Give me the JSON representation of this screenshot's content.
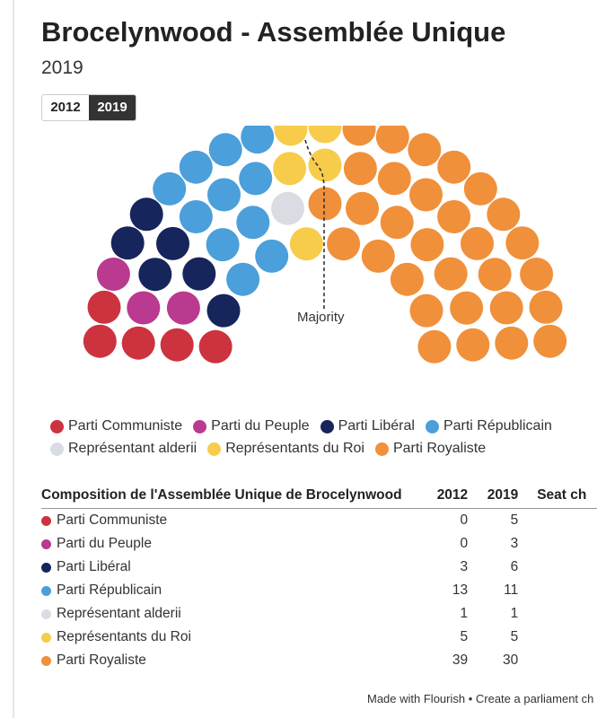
{
  "header": {
    "title": "Brocelynwood - Assemblée Unique",
    "subtitle": "2019"
  },
  "year_toggle": [
    {
      "label": "2012",
      "active": false
    },
    {
      "label": "2019",
      "active": true
    }
  ],
  "colors": {
    "communiste": "#cc333f",
    "peuple": "#b93a8f",
    "liberal": "#16255b",
    "republicain": "#4b9fdb",
    "alderii": "#d9dde3",
    "roi": "#f7cc4a",
    "royaliste": "#f0903a"
  },
  "chart_data": {
    "type": "parliament",
    "majority_label": "Majority",
    "parties": [
      {
        "name": "Parti Communiste",
        "color": "#cc333f",
        "seats_2012": 0,
        "seats_2019": 5
      },
      {
        "name": "Parti du Peuple",
        "color": "#b93a8f",
        "seats_2012": 0,
        "seats_2019": 3
      },
      {
        "name": "Parti Libéral",
        "color": "#16255b",
        "seats_2012": 3,
        "seats_2019": 6
      },
      {
        "name": "Parti Républicain",
        "color": "#4b9fdb",
        "seats_2012": 13,
        "seats_2019": 11
      },
      {
        "name": "Représentant alderii",
        "color": "#d9dde3",
        "seats_2012": 1,
        "seats_2019": 1
      },
      {
        "name": "Représentants du Roi",
        "color": "#f7cc4a",
        "seats_2012": 5,
        "seats_2019": 5
      },
      {
        "name": "Parti Royaliste",
        "color": "#f0903a",
        "seats_2012": 39,
        "seats_2019": 30
      }
    ]
  },
  "table": {
    "headers": [
      "Composition de l'Assemblée Unique de Brocelynwood",
      "2012",
      "2019",
      "Seat ch"
    ]
  },
  "footer": {
    "text": "Made with Flourish • Create a parliament ch"
  }
}
